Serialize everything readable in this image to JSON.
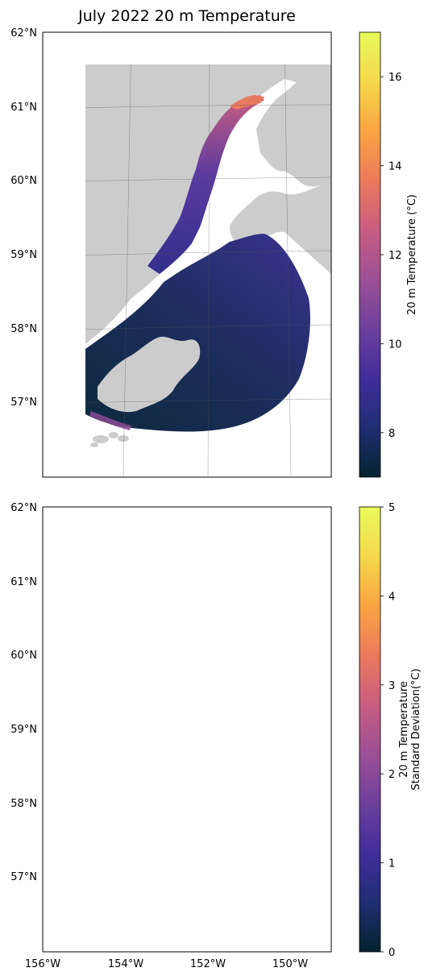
{
  "title": "July 2022 20 m Temperature",
  "lat_labels": [
    "62°N",
    "61°N",
    "60°N",
    "59°N",
    "58°N",
    "57°N"
  ],
  "lon_labels": [
    "156°W",
    "154°W",
    "152°W",
    "150°W"
  ],
  "panels": [
    {
      "colorbar": {
        "label": "20 m Temperature (°C)",
        "label_lines": [],
        "range": [
          7,
          17
        ],
        "ticks": [
          "8",
          "10",
          "12",
          "14",
          "16"
        ],
        "colormap": "thermal"
      }
    },
    {
      "colorbar": {
        "label": "",
        "label_lines": [
          "20 m Temperature",
          "Standard Deviation(°C)"
        ],
        "range": [
          0,
          5
        ],
        "ticks": [
          "0",
          "1",
          "2",
          "3",
          "4",
          "5"
        ],
        "colormap": "thermal"
      }
    }
  ],
  "colors": {
    "land": "#cccccc",
    "ocean": "#ffffff",
    "thermal_stops": [
      "#04232f",
      "#1e2e72",
      "#402d9a",
      "#6c3f9c",
      "#9a4f96",
      "#c95e80",
      "#ec7b5b",
      "#f9a642",
      "#f5d94b",
      "#e8fa5b"
    ]
  }
}
